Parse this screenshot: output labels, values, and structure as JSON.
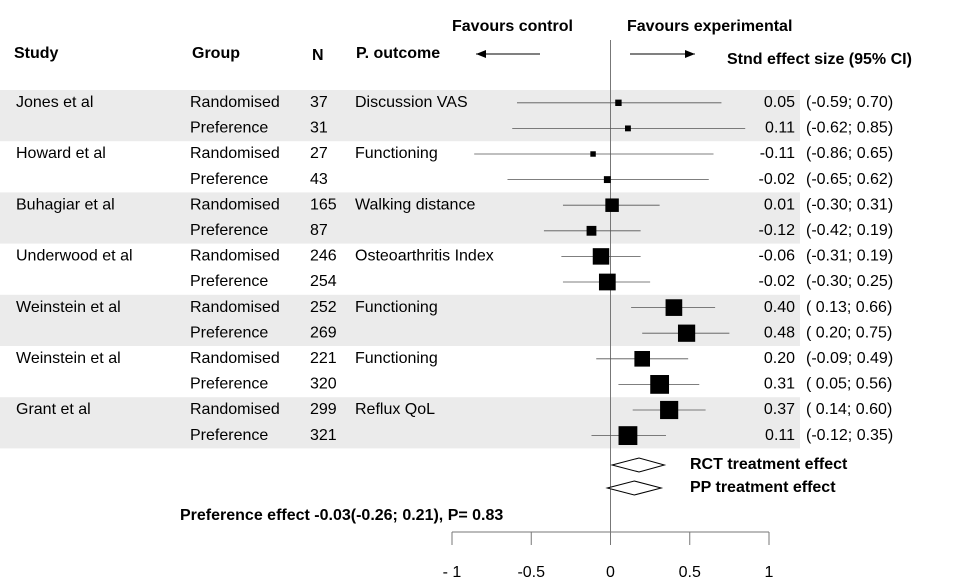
{
  "chart_data": {
    "type": "forest",
    "headers": {
      "study": "Study",
      "group": "Group",
      "n": "N",
      "outcome": "P. outcome",
      "effect": "Stnd effect size (95% CI)"
    },
    "favours_left": "Favours control",
    "favours_right": "Favours experimental",
    "studies": [
      {
        "name": "Jones et al",
        "outcome": "Discussion VAS",
        "rows": [
          {
            "group": "Randomised",
            "n": 37,
            "estimate": 0.05,
            "lower": -0.59,
            "upper": 0.7,
            "value_label": "0.05",
            "ci_label": "(-0.59; 0.70)"
          },
          {
            "group": "Preference",
            "n": 31,
            "estimate": 0.11,
            "lower": -0.62,
            "upper": 0.85,
            "value_label": "0.11",
            "ci_label": "(-0.62; 0.85)"
          }
        ]
      },
      {
        "name": "Howard et al",
        "outcome": "Functioning",
        "rows": [
          {
            "group": "Randomised",
            "n": 27,
            "estimate": -0.11,
            "lower": -0.86,
            "upper": 0.65,
            "value_label": "-0.11",
            "ci_label": "(-0.86; 0.65)"
          },
          {
            "group": "Preference",
            "n": 43,
            "estimate": -0.02,
            "lower": -0.65,
            "upper": 0.62,
            "value_label": "-0.02",
            "ci_label": "(-0.65; 0.62)"
          }
        ]
      },
      {
        "name": "Buhagiar et al",
        "outcome": "Walking distance",
        "rows": [
          {
            "group": "Randomised",
            "n": 165,
            "estimate": 0.01,
            "lower": -0.3,
            "upper": 0.31,
            "value_label": "0.01",
            "ci_label": "(-0.30; 0.31)"
          },
          {
            "group": "Preference",
            "n": 87,
            "estimate": -0.12,
            "lower": -0.42,
            "upper": 0.19,
            "value_label": "-0.12",
            "ci_label": "(-0.42; 0.19)"
          }
        ]
      },
      {
        "name": "Underwood et al",
        "outcome": "Osteoarthritis Index",
        "rows": [
          {
            "group": "Randomised",
            "n": 246,
            "estimate": -0.06,
            "lower": -0.31,
            "upper": 0.19,
            "value_label": "-0.06",
            "ci_label": "(-0.31; 0.19)"
          },
          {
            "group": "Preference",
            "n": 254,
            "estimate": -0.02,
            "lower": -0.3,
            "upper": 0.25,
            "value_label": "-0.02",
            "ci_label": "(-0.30; 0.25)"
          }
        ]
      },
      {
        "name": "Weinstein et al",
        "outcome": "Functioning",
        "rows": [
          {
            "group": "Randomised",
            "n": 252,
            "estimate": 0.4,
            "lower": 0.13,
            "upper": 0.66,
            "value_label": "0.40",
            "ci_label": "( 0.13; 0.66)"
          },
          {
            "group": "Preference",
            "n": 269,
            "estimate": 0.48,
            "lower": 0.2,
            "upper": 0.75,
            "value_label": "0.48",
            "ci_label": "( 0.20; 0.75)"
          }
        ]
      },
      {
        "name": "Weinstein et al",
        "outcome": "Functioning",
        "rows": [
          {
            "group": "Randomised",
            "n": 221,
            "estimate": 0.2,
            "lower": -0.09,
            "upper": 0.49,
            "value_label": "0.20",
            "ci_label": "(-0.09; 0.49)"
          },
          {
            "group": "Preference",
            "n": 320,
            "estimate": 0.31,
            "lower": 0.05,
            "upper": 0.56,
            "value_label": "0.31",
            "ci_label": "( 0.05; 0.56)"
          }
        ]
      },
      {
        "name": "Grant et al",
        "outcome": "Reflux QoL",
        "rows": [
          {
            "group": "Randomised",
            "n": 299,
            "estimate": 0.37,
            "lower": 0.14,
            "upper": 0.6,
            "value_label": "0.37",
            "ci_label": "( 0.14; 0.60)"
          },
          {
            "group": "Preference",
            "n": 321,
            "estimate": 0.11,
            "lower": -0.12,
            "upper": 0.35,
            "value_label": "0.11",
            "ci_label": "(-0.12; 0.35)"
          }
        ]
      }
    ],
    "summaries": [
      {
        "name": "RCT treatment effect",
        "estimate": 0.18,
        "lower": 0.01,
        "upper": 0.34
      },
      {
        "name": "PP treatment effect",
        "estimate": 0.15,
        "lower": -0.02,
        "upper": 0.32
      }
    ],
    "annotation": "Preference effect -0.03(-0.26; 0.21), P= 0.83",
    "xlim": [
      -1,
      1
    ],
    "xticks": [
      {
        "value": -1,
        "label": "- 1"
      },
      -0.5,
      0,
      0.5,
      1
    ],
    "band_color": "#ebebeb"
  }
}
